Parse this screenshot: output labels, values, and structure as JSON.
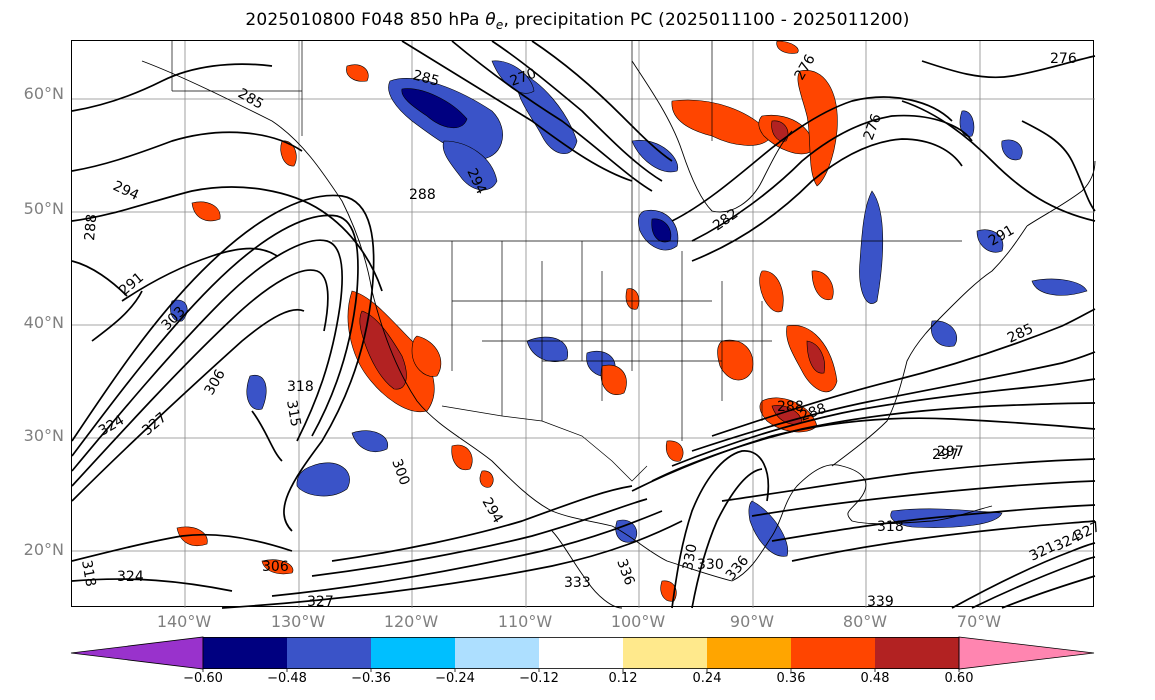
{
  "title": {
    "prefix": "2025010800 F048 850 hPa ",
    "theta": "θ",
    "sub": "e",
    "suffix": ", precipitation PC (2025011100 - 2025011200)"
  },
  "lat_labels": [
    "60°N",
    "50°N",
    "40°N",
    "30°N",
    "20°N"
  ],
  "lon_labels": [
    "140°W",
    "130°W",
    "120°W",
    "110°W",
    "100°W",
    "90°W",
    "80°W",
    "70°W"
  ],
  "colorbar": {
    "tick_labels": [
      "−0.60",
      "−0.48",
      "−0.36",
      "−0.24",
      "−0.12",
      "0.12",
      "0.24",
      "0.36",
      "0.48",
      "0.60"
    ],
    "colors": [
      "#9932CC",
      "#000080",
      "#3A53C8",
      "#00BFFF",
      "#ADDFFF",
      "#FFFFFF",
      "#FFE98C",
      "#FFA500",
      "#FF4500",
      "#B22222",
      "#FF85B0"
    ]
  },
  "contour_labels": [
    "276",
    "276",
    "285",
    "270",
    "285",
    "294",
    "288",
    "291",
    "294",
    "288",
    "282",
    "276",
    "288",
    "297",
    "291",
    "303",
    "306",
    "318",
    "315",
    "300",
    "324",
    "327",
    "294",
    "288",
    "297",
    "285",
    "306",
    "318",
    "324",
    "327",
    "330",
    "333",
    "336",
    "330",
    "336",
    "339",
    "318",
    "321",
    "324",
    "327"
  ],
  "colors": {
    "contour": "#000000",
    "grid": "#808080",
    "axis_labels": "#808080"
  }
}
